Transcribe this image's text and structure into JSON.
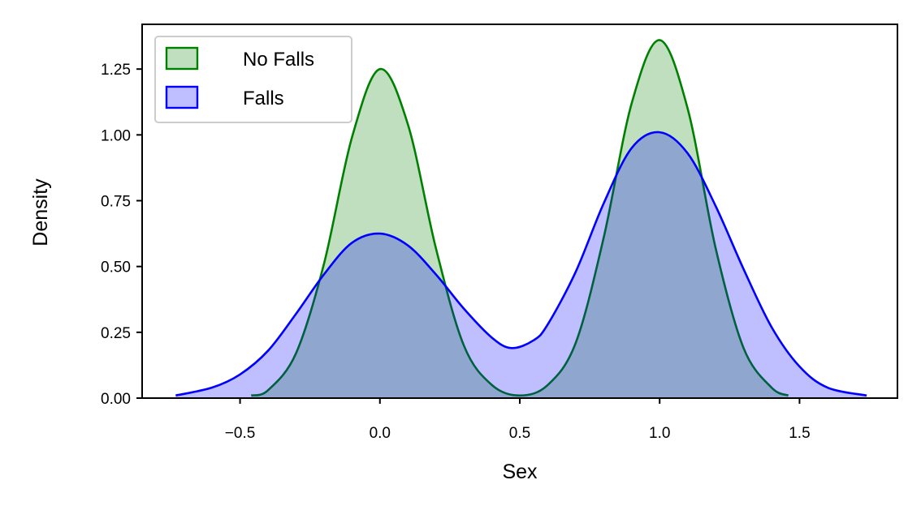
{
  "chart_data": {
    "type": "area",
    "title": "",
    "xlabel": "Sex",
    "ylabel": "Density",
    "xlim": [
      -0.85,
      1.85
    ],
    "ylim": [
      0,
      1.42
    ],
    "xticks": [
      -0.5,
      0.0,
      0.5,
      1.0,
      1.5
    ],
    "xtick_labels": [
      "−0.5",
      "0.0",
      "0.5",
      "1.0",
      "1.5"
    ],
    "yticks": [
      0,
      0.25,
      0.5,
      0.75,
      1.0,
      1.25
    ],
    "ytick_labels": [
      "0.00",
      "0.25",
      "0.50",
      "0.75",
      "1.00",
      "1.25"
    ],
    "grid": false,
    "legend_position": "top-left",
    "series": [
      {
        "name": "No Falls",
        "line_color": "#008000",
        "fill_color": "#008000",
        "fill_opacity": 0.25,
        "x": [
          -0.46,
          -0.4,
          -0.3,
          -0.2,
          -0.1,
          0.0,
          0.1,
          0.2,
          0.3,
          0.4,
          0.5,
          0.6,
          0.7,
          0.8,
          0.9,
          1.0,
          1.1,
          1.2,
          1.3,
          1.4,
          1.46
        ],
        "values": [
          0.01,
          0.03,
          0.17,
          0.51,
          0.99,
          1.25,
          1.04,
          0.57,
          0.2,
          0.05,
          0.01,
          0.05,
          0.21,
          0.61,
          1.12,
          1.36,
          1.1,
          0.57,
          0.19,
          0.04,
          0.01
        ]
      },
      {
        "name": "Falls",
        "line_color": "#0000ff",
        "fill_color": "#0000ff",
        "fill_opacity": 0.25,
        "x": [
          -0.73,
          -0.6,
          -0.5,
          -0.4,
          -0.3,
          -0.2,
          -0.1,
          0.0,
          0.1,
          0.2,
          0.3,
          0.4,
          0.47,
          0.55,
          0.6,
          0.7,
          0.8,
          0.9,
          1.0,
          1.1,
          1.2,
          1.3,
          1.4,
          1.5,
          1.6,
          1.74
        ],
        "values": [
          0.01,
          0.04,
          0.09,
          0.18,
          0.32,
          0.47,
          0.59,
          0.625,
          0.58,
          0.47,
          0.34,
          0.23,
          0.19,
          0.22,
          0.28,
          0.48,
          0.74,
          0.95,
          1.01,
          0.93,
          0.73,
          0.49,
          0.27,
          0.12,
          0.04,
          0.01
        ]
      }
    ]
  }
}
